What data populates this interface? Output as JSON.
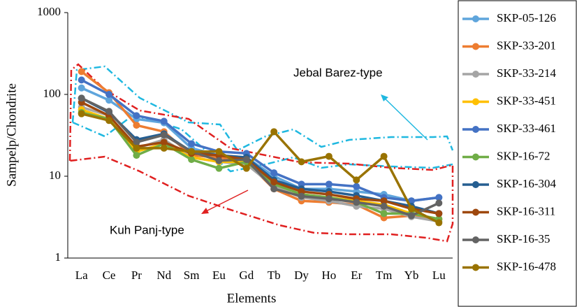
{
  "chart_data": {
    "type": "line",
    "x_label": "Elements",
    "y_label": "Sampelp/Chondrite",
    "categories": [
      "La",
      "Ce",
      "Pr",
      "Nd",
      "Sm",
      "Eu",
      "Gd",
      "Tb",
      "Dy",
      "Ho",
      "Er",
      "Tm",
      "Yb",
      "Lu"
    ],
    "log_scale": true,
    "ylim": [
      1,
      1000
    ],
    "yticks": [
      1,
      10,
      100,
      1000
    ],
    "legend": "right",
    "annotations": [
      {
        "text": "Jebal Barez-type",
        "color": "#1fa9d8"
      },
      {
        "text": "Kuh Panj-type",
        "color": "#e02020"
      }
    ],
    "series": [
      {
        "name": "SKP-05-126",
        "color": "#5fa5dc",
        "values": [
          120,
          85,
          50,
          45,
          22,
          18,
          17,
          10,
          7,
          7,
          6.5,
          6,
          5,
          5.5
        ]
      },
      {
        "name": "SKP-33-201",
        "color": "#ed7d31",
        "values": [
          190,
          105,
          42,
          35,
          18,
          17,
          15,
          7,
          5,
          4.8,
          4.5,
          3.1,
          3.3,
          3
        ]
      },
      {
        "name": "SKP-33-214",
        "color": "#a5a5a5",
        "values": [
          70,
          55,
          22,
          28,
          17,
          15,
          14,
          7.5,
          5.5,
          5,
          4.3,
          4,
          3.2,
          2.8
        ]
      },
      {
        "name": "SKP-33-451",
        "color": "#ffc000",
        "values": [
          65,
          50,
          20,
          25,
          17,
          15,
          15,
          8,
          6,
          5.5,
          5,
          4.5,
          3.5,
          3
        ]
      },
      {
        "name": "SKP-33-461",
        "color": "#4472c4",
        "values": [
          150,
          100,
          55,
          47,
          25,
          20,
          19,
          11,
          8,
          8,
          7.5,
          5.5,
          5,
          5.5
        ]
      },
      {
        "name": "SKP-16-72",
        "color": "#70ad47",
        "values": [
          60,
          50,
          18,
          25,
          16,
          12.5,
          15,
          8,
          6,
          5.5,
          4.8,
          3.5,
          3.5,
          3
        ]
      },
      {
        "name": "SKP-16-304",
        "color": "#255e91",
        "values": [
          90,
          60,
          28,
          33,
          20,
          18,
          17,
          9,
          7,
          6.5,
          5.8,
          5,
          4.3,
          3.5
        ]
      },
      {
        "name": "SKP-16-311",
        "color": "#9e480e",
        "values": [
          80,
          55,
          23,
          26,
          19,
          18,
          16,
          8.5,
          6.5,
          6,
          5.3,
          5,
          4,
          3.5
        ]
      },
      {
        "name": "SKP-16-35",
        "color": "#636363",
        "values": [
          90,
          62,
          26,
          32,
          20,
          15.5,
          16,
          7,
          5.7,
          5.3,
          4.8,
          4.3,
          3.3,
          4.7
        ]
      },
      {
        "name": "SKP-16-478",
        "color": "#997300",
        "values": [
          58,
          48,
          22,
          22,
          20,
          20,
          12.5,
          35,
          15,
          17.5,
          9,
          17.5,
          4,
          2.7
        ]
      }
    ]
  }
}
